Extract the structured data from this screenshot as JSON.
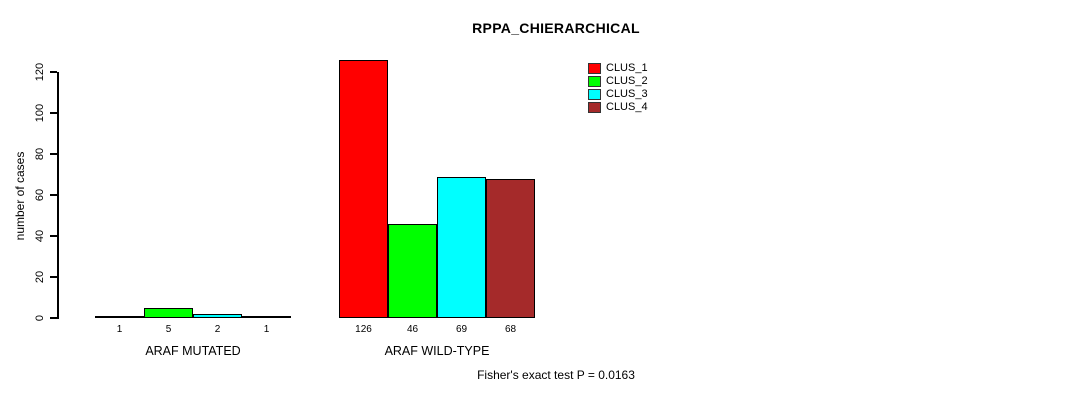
{
  "chart_data": {
    "type": "bar",
    "title": "RPPA_CHIERARCHICAL",
    "xlabel": "",
    "ylabel": "number of cases",
    "ylim": [
      0,
      130
    ],
    "yticks": [
      0,
      20,
      40,
      60,
      80,
      100,
      120
    ],
    "grid": false,
    "legend_position": "top-right",
    "bar_value_labels_shown": true,
    "categories": [
      "ARAF MUTATED",
      "ARAF WILD-TYPE"
    ],
    "series": [
      {
        "name": "CLUS_1",
        "color": "#FF0000",
        "values": [
          1,
          126
        ]
      },
      {
        "name": "CLUS_2",
        "color": "#00FF00",
        "values": [
          5,
          46
        ]
      },
      {
        "name": "CLUS_3",
        "color": "#00FFFF",
        "values": [
          2,
          69
        ]
      },
      {
        "name": "CLUS_4",
        "color": "#A52A2A",
        "values": [
          1,
          68
        ]
      }
    ]
  },
  "annotation": {
    "fisher_text": "Fisher's exact test P = 0.0163"
  },
  "colors": {
    "axis": "#000000",
    "bar_border": "#000000",
    "background": "#FFFFFF"
  }
}
